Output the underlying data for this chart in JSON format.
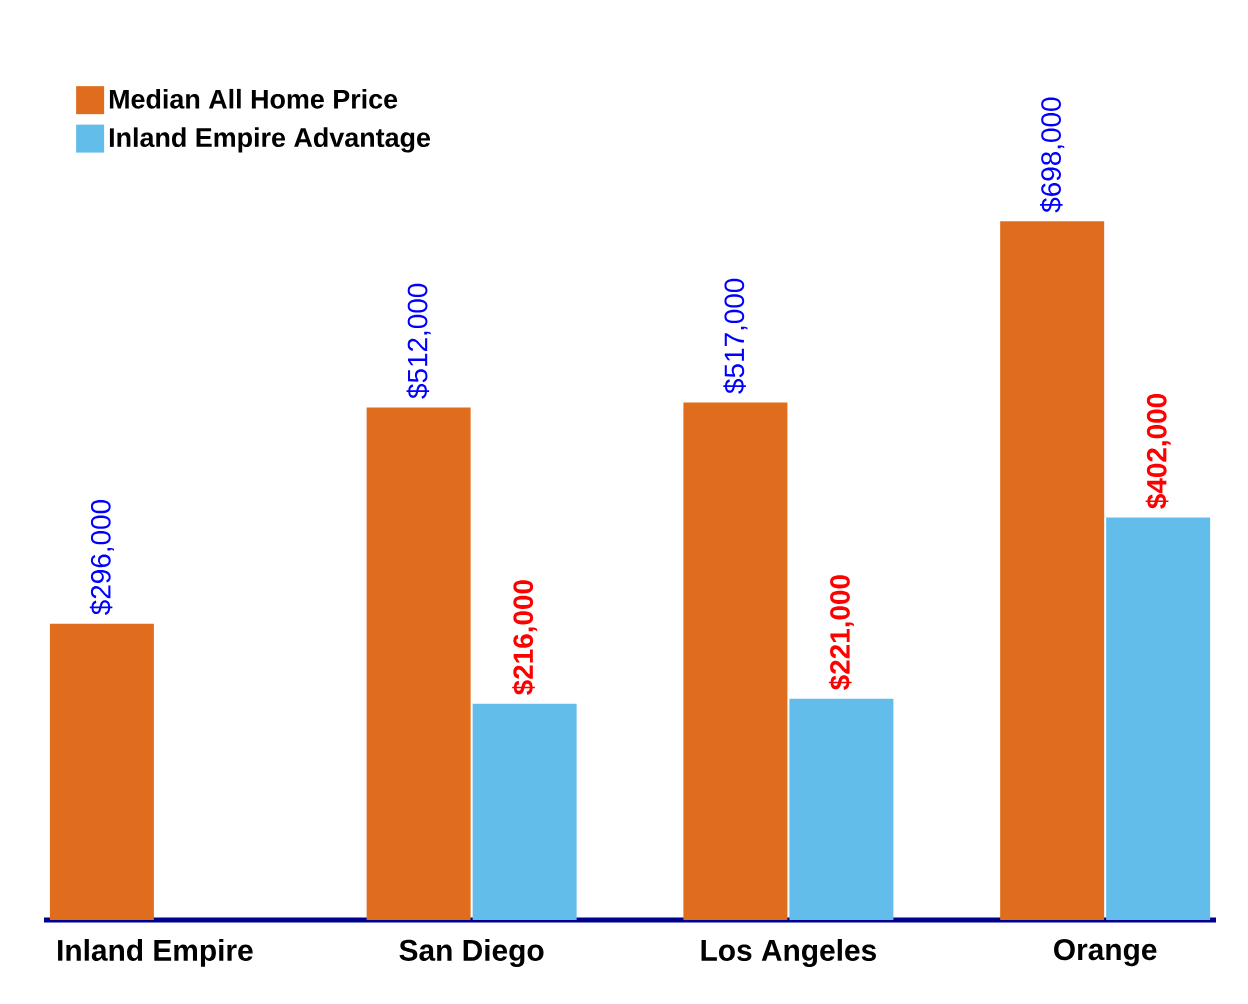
{
  "chart_data": {
    "type": "bar",
    "categories": [
      "Inland Empire",
      "San Diego",
      "Los Angeles",
      "Orange"
    ],
    "series": [
      {
        "name": "Median All Home Price",
        "color": "#e06c1e",
        "values": [
          296000,
          512000,
          517000,
          698000
        ],
        "value_labels": [
          "$296,000",
          "$512,000",
          "$517,000",
          "$698,000"
        ]
      },
      {
        "name": "Inland Empire Advantage",
        "color": "#63bdea",
        "values": [
          null,
          216000,
          221000,
          402000
        ],
        "value_labels": [
          null,
          "$216,000",
          "$221,000",
          "$402,000"
        ]
      }
    ],
    "legend": "top left"
  }
}
